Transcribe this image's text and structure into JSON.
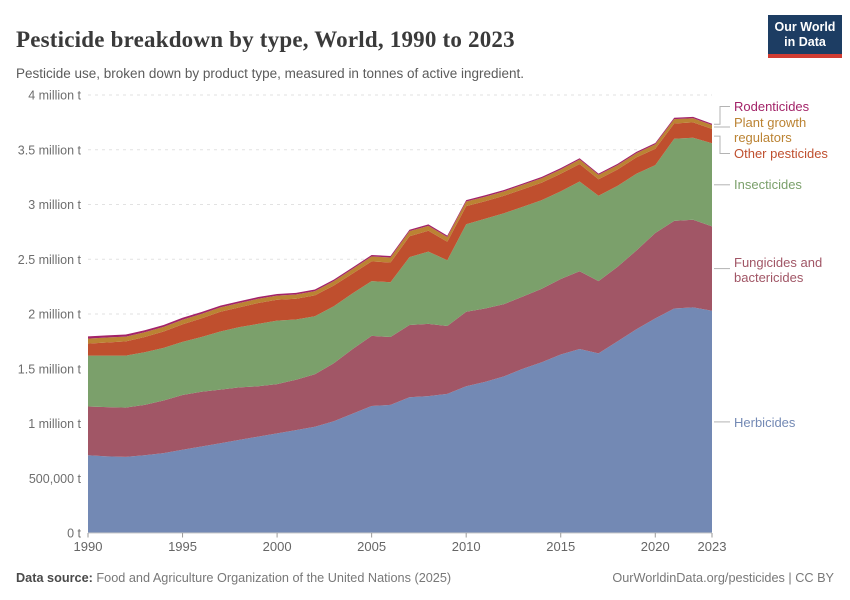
{
  "header": {
    "title": "Pesticide breakdown by type, World, 1990 to 2023",
    "subtitle": "Pesticide use, broken down by product type, measured in tonnes of active ingredient.",
    "logo_line1": "Our World",
    "logo_line2": "in Data"
  },
  "footer": {
    "source_label": "Data source:",
    "source_text": "Food and Agriculture Organization of the United Nations (2025)",
    "credit": "OurWorldinData.org/pesticides | CC BY"
  },
  "chart_data": {
    "type": "area",
    "stacked": true,
    "title": "Pesticide breakdown by type, World, 1990 to 2023",
    "unit": "tonnes of active ingredient",
    "grid": "dashed",
    "legend_position": "right",
    "ylim": [
      0,
      4000000
    ],
    "x": [
      1990,
      1991,
      1992,
      1993,
      1994,
      1995,
      1996,
      1997,
      1998,
      1999,
      2000,
      2001,
      2002,
      2003,
      2004,
      2005,
      2006,
      2007,
      2008,
      2009,
      2010,
      2011,
      2012,
      2013,
      2014,
      2015,
      2016,
      2017,
      2018,
      2019,
      2020,
      2021,
      2022,
      2023
    ],
    "x_ticks": [
      1990,
      1995,
      2000,
      2005,
      2010,
      2015,
      2020,
      2023
    ],
    "y_ticks": [
      {
        "value": 0,
        "label": "0 t"
      },
      {
        "value": 500000,
        "label": "500,000 t"
      },
      {
        "value": 1000000,
        "label": "1 million t"
      },
      {
        "value": 1500000,
        "label": "1.5 million t"
      },
      {
        "value": 2000000,
        "label": "2 million t"
      },
      {
        "value": 2500000,
        "label": "2.5 million t"
      },
      {
        "value": 3000000,
        "label": "3 million t"
      },
      {
        "value": 3500000,
        "label": "3.5 million t"
      },
      {
        "value": 4000000,
        "label": "4 million t"
      }
    ],
    "series": [
      {
        "name": "Herbicides",
        "color": "#7389b4",
        "values": [
          710000,
          700000,
          695000,
          710000,
          730000,
          760000,
          790000,
          820000,
          850000,
          880000,
          910000,
          940000,
          970000,
          1020000,
          1090000,
          1160000,
          1170000,
          1240000,
          1250000,
          1270000,
          1340000,
          1380000,
          1430000,
          1500000,
          1560000,
          1630000,
          1680000,
          1640000,
          1750000,
          1860000,
          1960000,
          2050000,
          2060000,
          2030000
        ]
      },
      {
        "name": "Fungicides and bactericides",
        "color": "#a15666",
        "values": [
          445000,
          450000,
          450000,
          460000,
          480000,
          500000,
          500000,
          490000,
          480000,
          460000,
          450000,
          460000,
          480000,
          530000,
          590000,
          640000,
          620000,
          660000,
          660000,
          620000,
          680000,
          670000,
          660000,
          660000,
          670000,
          690000,
          710000,
          660000,
          680000,
          720000,
          780000,
          800000,
          800000,
          770000
        ]
      },
      {
        "name": "Insecticides",
        "color": "#7ba06b",
        "values": [
          465000,
          470000,
          475000,
          480000,
          480000,
          485000,
          500000,
          530000,
          550000,
          570000,
          580000,
          550000,
          530000,
          520000,
          510000,
          500000,
          500000,
          620000,
          660000,
          600000,
          800000,
          820000,
          830000,
          820000,
          810000,
          800000,
          820000,
          780000,
          740000,
          700000,
          620000,
          750000,
          750000,
          760000
        ]
      },
      {
        "name": "Other pesticides",
        "color": "#bf4f2e",
        "values": [
          110000,
          120000,
          130000,
          140000,
          150000,
          160000,
          170000,
          180000,
          180000,
          190000,
          190000,
          190000,
          190000,
          190000,
          180000,
          180000,
          180000,
          190000,
          190000,
          170000,
          165000,
          160000,
          160000,
          160000,
          160000,
          160000,
          160000,
          150000,
          150000,
          150000,
          150000,
          140000,
          140000,
          130000
        ]
      },
      {
        "name": "Plant growth regulators",
        "color": "#bb8333",
        "values": [
          45000,
          45000,
          44000,
          43000,
          42000,
          42000,
          41000,
          40000,
          40000,
          39000,
          38000,
          38000,
          39000,
          40000,
          42000,
          45000,
          46000,
          47000,
          45000,
          43000,
          42000,
          41000,
          40000,
          40000,
          40000,
          40000,
          41000,
          40000,
          39000,
          38000,
          40000,
          40000,
          38000,
          36000
        ]
      },
      {
        "name": "Rodenticides",
        "color": "#a32368",
        "values": [
          20000,
          20000,
          19000,
          19000,
          18000,
          18000,
          17000,
          17000,
          16000,
          16000,
          15000,
          15000,
          15000,
          14000,
          14000,
          14000,
          14000,
          13000,
          13000,
          13000,
          13000,
          13000,
          12000,
          12000,
          12000,
          12000,
          12000,
          12000,
          12000,
          12000,
          12000,
          12000,
          12000,
          12000
        ]
      }
    ]
  }
}
